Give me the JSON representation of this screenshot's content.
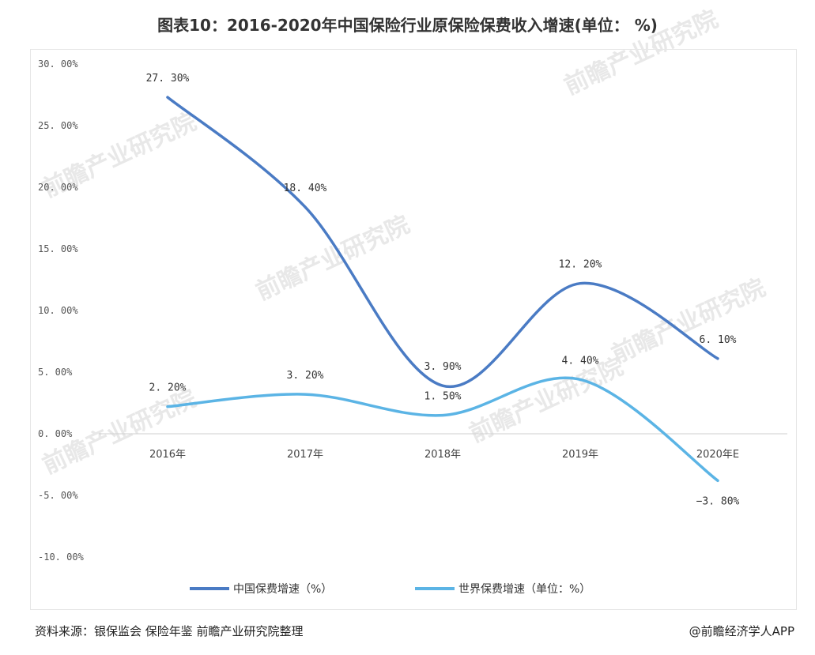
{
  "title": "图表10：2016-2020年中国保险行业原保险保费收入增速(单位： %)",
  "chart_data": {
    "type": "line",
    "categories": [
      "2016年",
      "2017年",
      "2018年",
      "2019年",
      "2020年E"
    ],
    "ylim": [
      -10,
      30
    ],
    "yticks": [
      30,
      25,
      20,
      15,
      10,
      5,
      0,
      -5,
      -10
    ],
    "ytick_labels": [
      "30. 00%",
      "25. 00%",
      "20. 00%",
      "15. 00%",
      "10. 00%",
      "5. 00%",
      "0. 00%",
      "-5. 00%",
      "-10. 00%"
    ],
    "grid": false,
    "legend_position": "bottom",
    "series": [
      {
        "name": "中国保费增速（%）",
        "color": "#4a7bc4",
        "values": [
          27.3,
          18.4,
          3.9,
          12.2,
          6.1
        ],
        "labels": [
          "27. 30%",
          "18. 40%",
          "3. 90%",
          "12. 20%",
          "6. 10%"
        ]
      },
      {
        "name": "世界保费增速（单位：%）",
        "color": "#5bb4e5",
        "values": [
          2.2,
          3.2,
          1.5,
          4.4,
          -3.8
        ],
        "labels": [
          "2. 20%",
          "3. 20%",
          "1. 50%",
          "4. 40%",
          "−3. 80%"
        ]
      }
    ]
  },
  "footer": {
    "source": "资料来源：银保监会 保险年鉴 前瞻产业研究院整理",
    "brand": "@前瞻经济学人APP"
  },
  "watermark": "前瞻产业研究院"
}
